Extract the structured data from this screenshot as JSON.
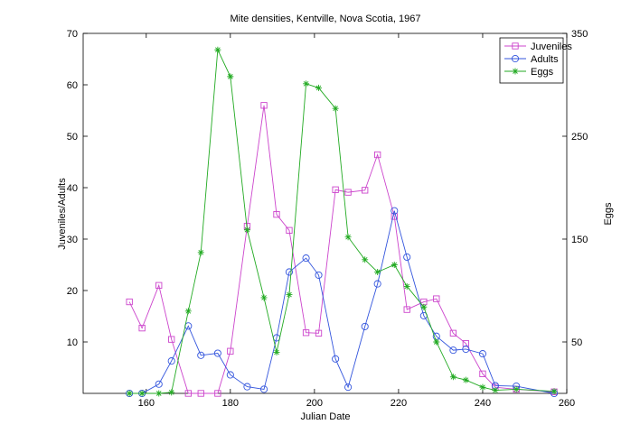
{
  "chart_data": {
    "type": "line",
    "title": "Mite densities, Kentville, Nova Scotia, 1967",
    "xlabel": "Julian Date",
    "ylabel_left": "Juveniles/Adults",
    "ylabel_right": "Eggs",
    "xlim": [
      145,
      260
    ],
    "ylim_left": [
      0,
      70
    ],
    "ylim_right": [
      0,
      350
    ],
    "xticks": [
      160,
      180,
      200,
      220,
      240,
      260
    ],
    "yticks_left": [
      10,
      20,
      30,
      40,
      50,
      60,
      70
    ],
    "yticks_right": [
      50,
      150,
      250,
      350
    ],
    "legend_position": "top-right",
    "grid": false,
    "series": [
      {
        "name": "Juveniles",
        "axis": "left",
        "marker": "square",
        "color": "#cc44cc",
        "x": [
          156,
          159,
          163,
          166,
          170,
          173,
          177,
          180,
          184,
          188,
          191,
          194,
          198,
          201,
          205,
          208,
          212,
          215,
          219,
          222,
          226,
          229,
          233,
          236,
          240,
          243,
          248,
          257
        ],
        "y": [
          17.8,
          12.7,
          21.0,
          10.5,
          0,
          0,
          0,
          8.2,
          32.5,
          56.0,
          34.8,
          31.7,
          11.8,
          11.7,
          39.6,
          39.1,
          39.5,
          46.4,
          34.4,
          16.3,
          17.8,
          18.4,
          11.7,
          9.7,
          3.8,
          1.2,
          0.8,
          0.3
        ]
      },
      {
        "name": "Adults",
        "axis": "left",
        "marker": "circle",
        "color": "#3355dd",
        "x": [
          156,
          159,
          163,
          166,
          170,
          173,
          177,
          180,
          184,
          188,
          191,
          194,
          198,
          201,
          205,
          208,
          212,
          215,
          219,
          222,
          226,
          229,
          233,
          236,
          240,
          243,
          248,
          257
        ],
        "y": [
          0,
          0,
          1.8,
          6.3,
          13.1,
          7.4,
          7.8,
          3.6,
          1.3,
          0.8,
          10.8,
          23.6,
          26.3,
          23.0,
          6.7,
          1.2,
          13.0,
          21.3,
          35.5,
          26.5,
          15.1,
          11.1,
          8.4,
          8.6,
          7.7,
          1.5,
          1.4,
          0
        ]
      },
      {
        "name": "Eggs",
        "axis": "right",
        "marker": "star",
        "color": "#22aa22",
        "x": [
          156,
          159,
          163,
          166,
          170,
          173,
          177,
          180,
          184,
          188,
          191,
          194,
          198,
          201,
          205,
          208,
          212,
          215,
          219,
          222,
          226,
          229,
          233,
          236,
          240,
          243,
          248,
          257
        ],
        "y": [
          0,
          0,
          0,
          1,
          80,
          137,
          334,
          308,
          159,
          93,
          40,
          96,
          301,
          297,
          277,
          152,
          130,
          118,
          125,
          104,
          84,
          50,
          16,
          13,
          6,
          3,
          4,
          2
        ]
      }
    ]
  }
}
